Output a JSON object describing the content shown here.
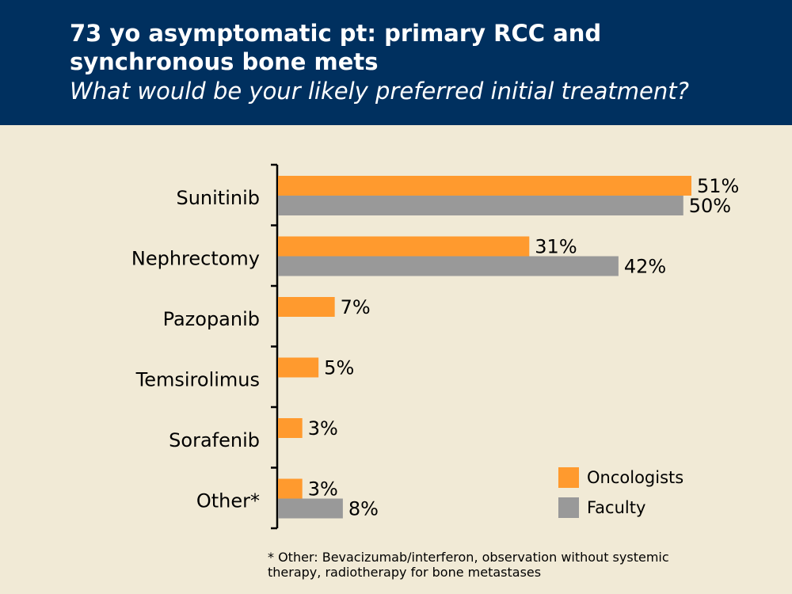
{
  "title": "73 yo asymptomatic pt: primary RCC and synchronous bone mets",
  "subtitle": "What would be your likely preferred initial treatment?",
  "footnote": "* Other: Bevacizumab/interferon, observation without systemic therapy, radiotherapy for bone metastases",
  "chart_data": {
    "type": "bar",
    "orientation": "horizontal",
    "categories": [
      "Sunitinib",
      "Nephrectomy",
      "Pazopanib",
      "Temsirolimus",
      "Sorafenib",
      "Other*"
    ],
    "series": [
      {
        "name": "Oncologists",
        "color": "#ff9a2e",
        "values": [
          51,
          31,
          7,
          5,
          3,
          3
        ],
        "labels": [
          "51%",
          "31%",
          "7%",
          "5%",
          "3%",
          "3%"
        ]
      },
      {
        "name": "Faculty",
        "color": "#999999",
        "values": [
          50,
          42,
          null,
          null,
          null,
          8
        ],
        "labels": [
          "50%",
          "42%",
          "",
          "",
          "",
          "8%"
        ]
      }
    ],
    "xlim": [
      0,
      51
    ],
    "grid": false,
    "legend": "bottom-right"
  }
}
